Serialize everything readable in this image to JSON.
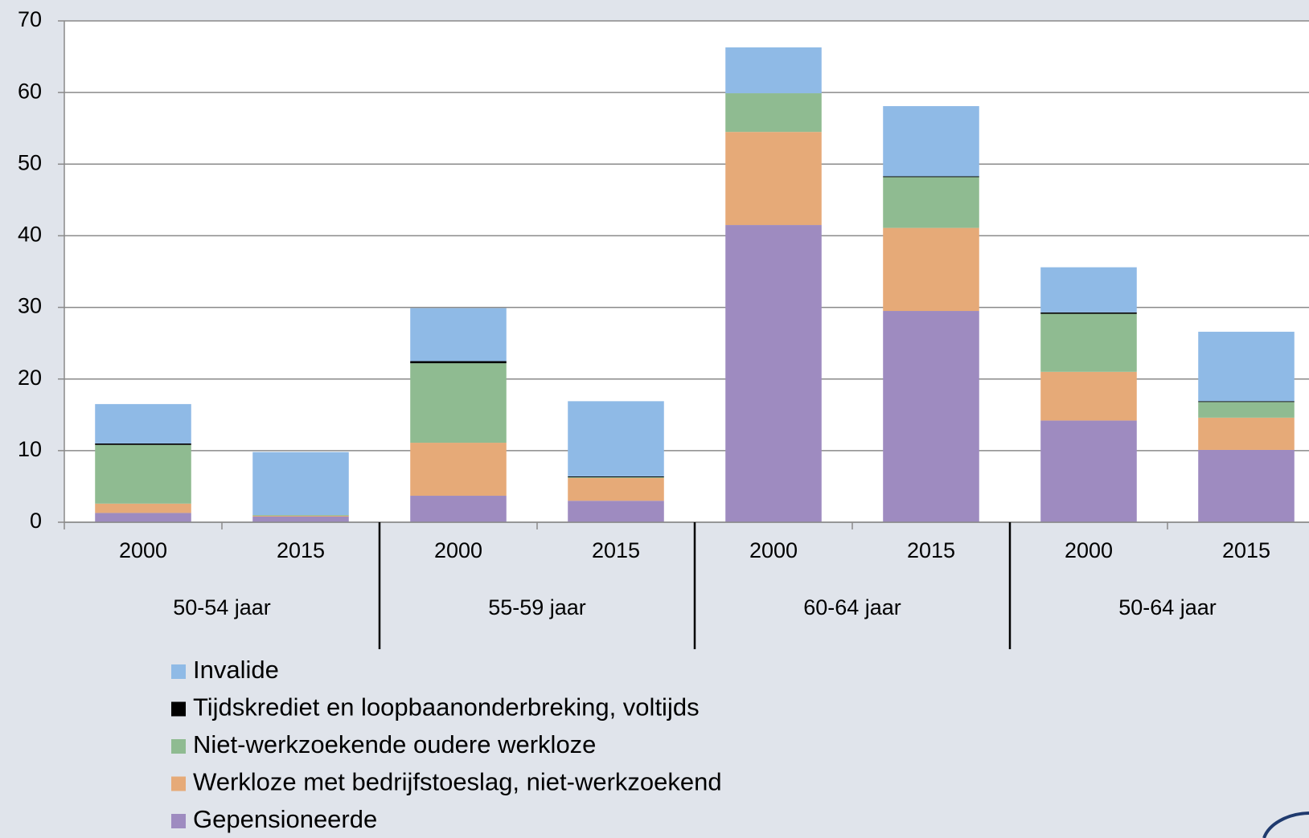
{
  "chart_data": {
    "type": "stacked_bar",
    "categories": [
      "2000",
      "2015",
      "2000",
      "2015",
      "2000",
      "2015",
      "2000",
      "2015"
    ],
    "groups": [
      "50-54 jaar",
      "55-59 jaar",
      "60-64 jaar",
      "50-64 jaar"
    ],
    "series": [
      {
        "name": "Gepensioneerde",
        "color": "#9e8bc0",
        "values": [
          1.3,
          0.8,
          3.7,
          3.0,
          41.5,
          29.5,
          14.2,
          10.1
        ]
      },
      {
        "name": "Werkloze met bedrijfstoeslag, niet-werkzoekend",
        "color": "#e6aa78",
        "values": [
          1.3,
          0.1,
          7.4,
          3.2,
          13.0,
          11.6,
          6.8,
          4.5
        ]
      },
      {
        "name": "Niet-werkzoekende oudere werkloze",
        "color": "#8fbb91",
        "values": [
          8.2,
          0.1,
          11.1,
          0.1,
          5.4,
          7.1,
          8.1,
          2.2
        ]
      },
      {
        "name": "Tijdskrediet en loopbaanonderbreking, voltijds",
        "color": "#000000",
        "values": [
          0.2,
          0,
          0.3,
          0.1,
          0,
          0.1,
          0.2,
          0.1
        ]
      },
      {
        "name": "Invalide",
        "color": "#8fbae6",
        "values": [
          5.5,
          8.8,
          7.4,
          10.5,
          6.4,
          9.8,
          6.3,
          9.7
        ]
      }
    ],
    "ylim": [
      0,
      70
    ],
    "yticks": [
      0,
      10,
      20,
      30,
      40,
      50,
      60,
      70
    ],
    "grid": true,
    "legend": "bottom"
  }
}
